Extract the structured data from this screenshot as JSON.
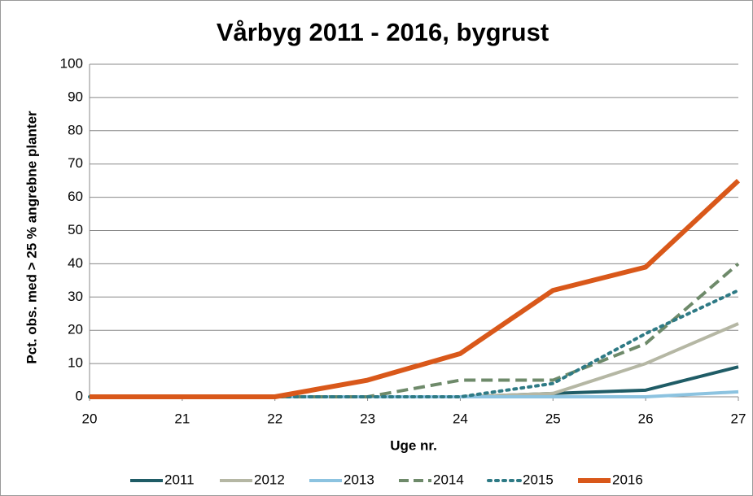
{
  "chart_data": {
    "type": "line",
    "title": "Vårbyg 2011 - 2016, bygrust",
    "x_label": "Uge nr.",
    "y_label": "Pct. obs. med > 25 % angrebne planter",
    "x": [
      20,
      21,
      22,
      23,
      24,
      25,
      26,
      27
    ],
    "xlim": [
      20,
      27
    ],
    "xticks": [
      20,
      21,
      22,
      23,
      24,
      25,
      26,
      27
    ],
    "ylim": [
      0,
      100
    ],
    "yticks": [
      0,
      10,
      20,
      30,
      40,
      50,
      60,
      70,
      80,
      90,
      100
    ],
    "grid": true,
    "legend": "bottom",
    "series": [
      {
        "name": "2011",
        "color": "#1f5c66",
        "dash": "solid",
        "values": [
          0,
          0,
          0,
          0,
          0,
          1,
          2,
          9
        ]
      },
      {
        "name": "2012",
        "color": "#b5b7a4",
        "dash": "solid",
        "values": [
          0,
          0,
          0,
          0,
          0,
          1,
          10,
          22
        ]
      },
      {
        "name": "2013",
        "color": "#8cc3e0",
        "dash": "solid",
        "values": [
          0,
          0,
          0,
          0,
          0,
          0,
          0,
          1.5
        ]
      },
      {
        "name": "2014",
        "color": "#6e8a6a",
        "dash": "dashed",
        "values": [
          0,
          0,
          0,
          0,
          5,
          5,
          16,
          40
        ]
      },
      {
        "name": "2015",
        "color": "#2e7a85",
        "dash": "dotted",
        "values": [
          0,
          0,
          0,
          0,
          0,
          4,
          19,
          32
        ]
      },
      {
        "name": "2016",
        "color": "#d9581a",
        "dash": "solid",
        "values": [
          0,
          0,
          0,
          5,
          13,
          32,
          39,
          65
        ]
      }
    ]
  }
}
